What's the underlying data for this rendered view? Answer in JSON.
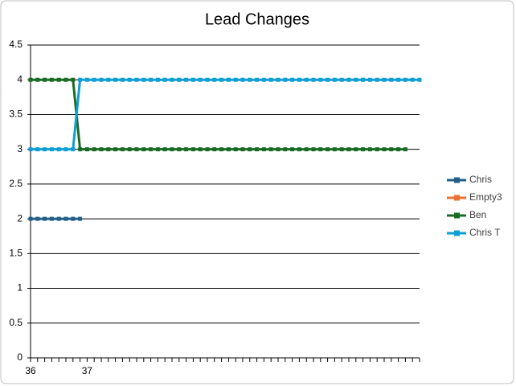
{
  "chart_data": {
    "type": "line",
    "title": "Lead Changes",
    "categories": [
      "36",
      null,
      null,
      null,
      null,
      null,
      null,
      null,
      "37",
      null,
      null,
      null,
      null,
      null,
      null,
      null,
      null,
      null,
      null,
      null,
      null,
      null,
      null,
      null,
      null,
      null,
      null,
      null,
      null,
      null,
      null,
      null,
      null,
      null,
      null,
      null,
      null,
      null,
      null,
      null,
      null,
      null,
      null,
      null,
      null,
      null,
      null,
      null,
      null,
      null,
      null,
      null,
      null,
      null,
      null,
      null
    ],
    "series": [
      {
        "name": "Chris",
        "color": "#215f88",
        "values": [
          2,
          2,
          2,
          2,
          2,
          2,
          2,
          2,
          null,
          null,
          null,
          null,
          null,
          null,
          null,
          null,
          null,
          null,
          null,
          null,
          null,
          null,
          null,
          null,
          null,
          null,
          null,
          null,
          null,
          null,
          null,
          null,
          null,
          null,
          null,
          null,
          null,
          null,
          null,
          null,
          null,
          null,
          null,
          null,
          null,
          null,
          null,
          null,
          null,
          null,
          null,
          null,
          null,
          null,
          null,
          null
        ]
      },
      {
        "name": "Empty3",
        "color": "#e97132",
        "values": [
          null,
          null,
          null,
          null,
          null,
          null,
          null,
          null,
          null,
          null,
          null,
          null,
          null,
          null,
          null,
          null,
          null,
          null,
          null,
          null,
          null,
          null,
          null,
          null,
          null,
          null,
          null,
          null,
          null,
          null,
          null,
          null,
          null,
          null,
          null,
          null,
          null,
          null,
          null,
          null,
          null,
          null,
          null,
          null,
          null,
          null,
          null,
          null,
          null,
          null,
          null,
          null,
          null,
          null,
          null,
          null
        ]
      },
      {
        "name": "Ben",
        "color": "#196b24",
        "values": [
          4,
          4,
          4,
          4,
          4,
          4,
          4,
          3,
          3,
          3,
          3,
          3,
          3,
          3,
          3,
          3,
          3,
          3,
          3,
          3,
          3,
          3,
          3,
          3,
          3,
          3,
          3,
          3,
          3,
          3,
          3,
          3,
          3,
          3,
          3,
          3,
          3,
          3,
          3,
          3,
          3,
          3,
          3,
          3,
          3,
          3,
          3,
          3,
          3,
          3,
          3,
          3,
          3,
          3,
          null,
          null
        ]
      },
      {
        "name": "Chris T",
        "color": "#0f9ed5",
        "values": [
          3,
          3,
          3,
          3,
          3,
          3,
          3,
          4,
          4,
          4,
          4,
          4,
          4,
          4,
          4,
          4,
          4,
          4,
          4,
          4,
          4,
          4,
          4,
          4,
          4,
          4,
          4,
          4,
          4,
          4,
          4,
          4,
          4,
          4,
          4,
          4,
          4,
          4,
          4,
          4,
          4,
          4,
          4,
          4,
          4,
          4,
          4,
          4,
          4,
          4,
          4,
          4,
          4,
          4,
          4,
          4
        ]
      }
    ],
    "ylim": [
      0,
      4.5
    ],
    "yticks": [
      0,
      0.5,
      1,
      1.5,
      2,
      2.5,
      3,
      3.5,
      4,
      4.5
    ],
    "grid": true,
    "legend": "right"
  }
}
